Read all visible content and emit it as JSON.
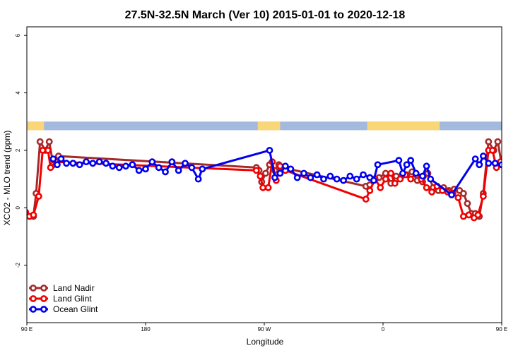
{
  "chart_data": {
    "type": "line",
    "title": "27.5N-32.5N March (Ver 10)   2015-01-01 to 2020-12-18",
    "xlabel": "Longitude",
    "ylabel": "XCO2 - MLO trend (ppm)",
    "xlim": [
      90,
      450
    ],
    "ylim": [
      -4,
      6.3
    ],
    "x_ticks": [
      {
        "value": 90,
        "label": "90 E"
      },
      {
        "value": 180,
        "label": "180"
      },
      {
        "value": 270,
        "label": "90 W"
      },
      {
        "value": 360,
        "label": "0"
      },
      {
        "value": 450,
        "label": "90 E"
      },
      {
        "value": 540,
        "label": "180"
      }
    ],
    "y_ticks": [
      {
        "value": -2,
        "label": "-2"
      },
      {
        "value": 0,
        "label": "0"
      },
      {
        "value": 2,
        "label": "2"
      },
      {
        "value": 4,
        "label": "4"
      },
      {
        "value": 6,
        "label": "6"
      }
    ],
    "grid": false,
    "legend_position": "bottom-left",
    "land_ocean_strip": {
      "y_range": [
        2.7,
        3.0
      ],
      "ocean_color": "#a3b9dd",
      "land_color": "#f9d678",
      "land_segments": [
        [
          90,
          103
        ],
        [
          265,
          282
        ],
        [
          348,
          403
        ],
        [
          458,
          514
        ],
        [
          536,
          540
        ]
      ]
    },
    "series": [
      {
        "name": "Land Nadir",
        "color": "#a52a2a",
        "points": [
          [
            89,
            -0.15
          ],
          [
            92,
            -0.3
          ],
          [
            95,
            -0.3
          ],
          [
            97,
            0.5
          ],
          [
            100,
            2.3
          ],
          [
            104,
            2.0
          ],
          [
            107,
            2.3
          ],
          [
            110,
            1.5
          ],
          [
            114,
            1.8
          ],
          [
            264,
            1.4
          ],
          [
            266,
            1.3
          ],
          [
            268,
            0.9
          ],
          [
            271,
            1.2
          ],
          [
            274,
            1.5
          ],
          [
            278,
            1.3
          ],
          [
            281,
            1.5
          ],
          [
            284,
            1.4
          ],
          [
            347,
            0.75
          ],
          [
            350,
            0.8
          ],
          [
            353,
            1.0
          ],
          [
            357,
            1.05
          ],
          [
            362,
            1.2
          ],
          [
            366,
            0.85
          ],
          [
            370,
            1.1
          ],
          [
            374,
            1.1
          ],
          [
            378,
            1.15
          ],
          [
            382,
            1.25
          ],
          [
            386,
            0.95
          ],
          [
            390,
            0.9
          ],
          [
            394,
            1.2
          ],
          [
            398,
            0.7
          ],
          [
            402,
            0.6
          ],
          [
            406,
            0.7
          ],
          [
            410,
            0.6
          ],
          [
            414,
            0.65
          ],
          [
            418,
            0.6
          ],
          [
            421,
            0.5
          ],
          [
            424,
            0.15
          ],
          [
            427,
            -0.2
          ],
          [
            430,
            -0.2
          ],
          [
            433,
            -0.3
          ],
          [
            436,
            0.5
          ],
          [
            440,
            2.3
          ],
          [
            444,
            2.0
          ],
          [
            447,
            2.3
          ],
          [
            450,
            1.5
          ],
          [
            454,
            1.8
          ]
        ]
      },
      {
        "name": "Land Glint",
        "color": "#f20000",
        "points": [
          [
            89,
            -0.15
          ],
          [
            92,
            -0.3
          ],
          [
            95,
            -0.25
          ],
          [
            99,
            0.4
          ],
          [
            102,
            2.0
          ],
          [
            106,
            2.0
          ],
          [
            108,
            1.4
          ],
          [
            112,
            1.6
          ],
          [
            264,
            1.3
          ],
          [
            267,
            1.1
          ],
          [
            269,
            0.7
          ],
          [
            273,
            0.7
          ],
          [
            276,
            1.6
          ],
          [
            279,
            0.95
          ],
          [
            282,
            1.45
          ],
          [
            286,
            1.3
          ],
          [
            347,
            0.3
          ],
          [
            350,
            0.6
          ],
          [
            354,
            1.0
          ],
          [
            358,
            0.7
          ],
          [
            362,
            1.0
          ],
          [
            366,
            1.2
          ],
          [
            369,
            0.85
          ],
          [
            373,
            1.0
          ],
          [
            377,
            1.15
          ],
          [
            381,
            1.0
          ],
          [
            385,
            1.2
          ],
          [
            389,
            1.0
          ],
          [
            393,
            0.7
          ],
          [
            397,
            0.55
          ],
          [
            401,
            0.75
          ],
          [
            405,
            0.6
          ],
          [
            409,
            0.55
          ],
          [
            413,
            0.5
          ],
          [
            417,
            0.35
          ],
          [
            421,
            -0.3
          ],
          [
            425,
            -0.25
          ],
          [
            429,
            -0.35
          ],
          [
            432,
            -0.25
          ],
          [
            436,
            0.4
          ],
          [
            440,
            2.0
          ],
          [
            443,
            2.0
          ],
          [
            446,
            1.4
          ],
          [
            449,
            1.6
          ]
        ]
      },
      {
        "name": "Ocean Glint",
        "color": "#0000ee",
        "points": [
          [
            110,
            1.7
          ],
          [
            113,
            1.5
          ],
          [
            116,
            1.7
          ],
          [
            120,
            1.55
          ],
          [
            125,
            1.55
          ],
          [
            130,
            1.5
          ],
          [
            135,
            1.6
          ],
          [
            140,
            1.55
          ],
          [
            145,
            1.6
          ],
          [
            150,
            1.55
          ],
          [
            155,
            1.45
          ],
          [
            160,
            1.4
          ],
          [
            165,
            1.45
          ],
          [
            170,
            1.5
          ],
          [
            175,
            1.3
          ],
          [
            180,
            1.35
          ],
          [
            185,
            1.6
          ],
          [
            190,
            1.4
          ],
          [
            195,
            1.25
          ],
          [
            200,
            1.6
          ],
          [
            205,
            1.3
          ],
          [
            210,
            1.55
          ],
          [
            215,
            1.4
          ],
          [
            220,
            1.0
          ],
          [
            223,
            1.35
          ],
          [
            274,
            2.0
          ],
          [
            278,
            1.05
          ],
          [
            282,
            1.2
          ],
          [
            286,
            1.45
          ],
          [
            290,
            1.35
          ],
          [
            295,
            1.05
          ],
          [
            300,
            1.2
          ],
          [
            305,
            1.05
          ],
          [
            310,
            1.15
          ],
          [
            315,
            1.0
          ],
          [
            320,
            1.1
          ],
          [
            325,
            1.0
          ],
          [
            330,
            0.95
          ],
          [
            335,
            1.1
          ],
          [
            340,
            1.0
          ],
          [
            345,
            1.15
          ],
          [
            350,
            1.05
          ],
          [
            353,
            0.95
          ],
          [
            356,
            1.5
          ],
          [
            372,
            1.65
          ],
          [
            375,
            1.2
          ],
          [
            378,
            1.5
          ],
          [
            381,
            1.65
          ],
          [
            385,
            1.2
          ],
          [
            390,
            1.1
          ],
          [
            393,
            1.45
          ],
          [
            396,
            1.0
          ],
          [
            412,
            0.45
          ],
          [
            430,
            1.7
          ],
          [
            433,
            1.5
          ],
          [
            436,
            1.8
          ],
          [
            440,
            1.55
          ],
          [
            445,
            1.55
          ],
          [
            450,
            1.5
          ],
          [
            455,
            1.6
          ],
          [
            460,
            1.55
          ],
          [
            465,
            1.6
          ],
          [
            470,
            1.55
          ],
          [
            475,
            1.45
          ]
        ]
      }
    ]
  }
}
